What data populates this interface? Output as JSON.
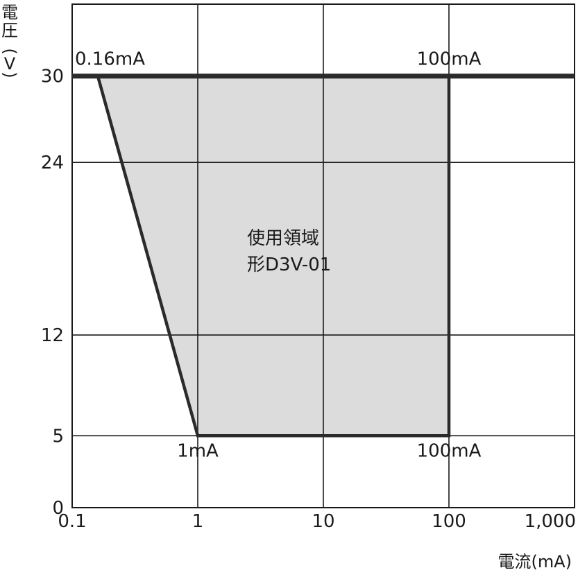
{
  "chart_data": {
    "type": "area",
    "title": "",
    "xlabel": "電流(mA)",
    "ylabel": "電圧(V)",
    "x_scale": "log",
    "xlim": [
      0.1,
      1000
    ],
    "ylim": [
      0,
      35
    ],
    "x_ticks": [
      0.1,
      1,
      10,
      100,
      1000
    ],
    "x_tick_labels": [
      "0.1",
      "1",
      "10",
      "100",
      "1,000"
    ],
    "y_ticks": [
      0,
      5,
      12,
      24,
      30
    ],
    "y_tick_labels": [
      "0",
      "5",
      "12",
      "24",
      "30"
    ],
    "grid": true,
    "series": [
      {
        "name": "使用領域 形D3V-01",
        "points": [
          {
            "x": 0.16,
            "y": 30
          },
          {
            "x": 100,
            "y": 30
          },
          {
            "x": 100,
            "y": 5
          },
          {
            "x": 1,
            "y": 5
          }
        ]
      }
    ],
    "region_label": [
      "使用領域",
      "形D3V-01"
    ],
    "annotations": [
      {
        "text": "0.16mA",
        "x": 0.16,
        "y": 30
      },
      {
        "text": "100mA",
        "x": 100,
        "y": 30
      },
      {
        "text": "1mA",
        "x": 1,
        "y": 5
      },
      {
        "text": "100mA",
        "x": 100,
        "y": 5
      }
    ],
    "colors": {
      "region_fill": "#dcdcdc",
      "outline": "#2b2b2b",
      "grid": "#1a1a1a"
    }
  }
}
